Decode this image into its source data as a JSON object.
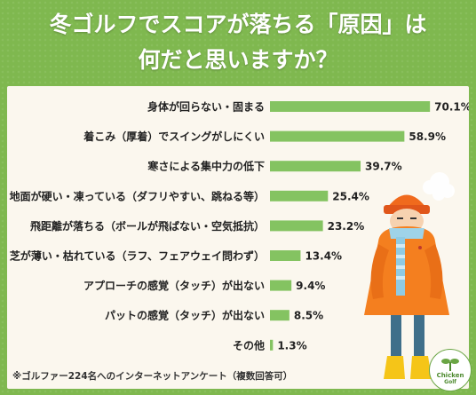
{
  "header": {
    "title_line1": "冬ゴルフでスコアが落ちる「原因」は",
    "title_line2": "何だと思いますか？"
  },
  "chart_data": {
    "type": "bar",
    "orientation": "horizontal",
    "categories": [
      "身体が回らない・固まる",
      "着こみ（厚着）でスイングがしにくい",
      "寒さによる集中力の低下",
      "地面が硬い・凍っている（ダフリやすい、跳ねる等）",
      "飛距離が落ちる（ボールが飛ばない・空気抵抗）",
      "芝が薄い・枯れている（ラフ、フェアウェイ問わず）",
      "アプローチの感覚（タッチ）が出ない",
      "パットの感覚（タッチ）が出ない",
      "その他"
    ],
    "values": [
      70.1,
      58.9,
      39.7,
      25.4,
      23.2,
      13.4,
      9.4,
      8.5,
      1.3
    ],
    "value_suffix": "%",
    "xlim": [
      0,
      100
    ],
    "grid": false,
    "bar_color": "#84c361"
  },
  "footnote": "※ゴルファー224名へのインターネットアンケート（複数回答可）",
  "logo": {
    "line1": "Chicken",
    "line2": "Golf"
  },
  "colors": {
    "background": "#7fb84f",
    "panel": "#fbf7ee",
    "bar": "#84c361"
  }
}
